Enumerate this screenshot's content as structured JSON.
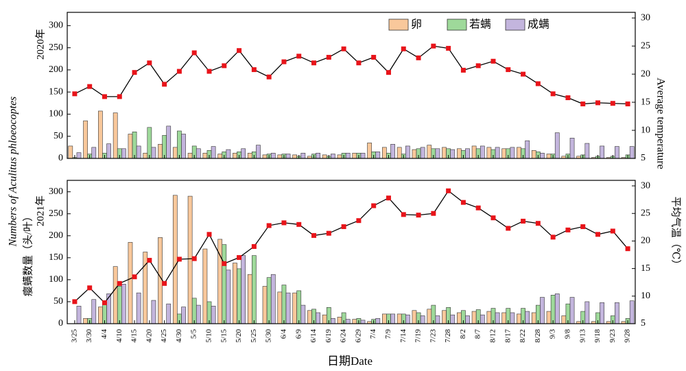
{
  "ylabel": "Numbers of Aculitus phloeocoptes",
  "ylabel_zh": "瘿螨数量（头/叶）",
  "y2label": "Average temperature",
  "y2label_zh": "平均气温（℃）",
  "xlabel": "日期Date",
  "chart_data": [
    {
      "type": "bar",
      "panel_label": "2020年",
      "ylim": [
        0,
        330
      ],
      "yticks": [
        0,
        50,
        100,
        150,
        200,
        250,
        300
      ],
      "y2lim": [
        5,
        31
      ],
      "y2ticks": [
        5,
        10,
        15,
        20,
        25,
        30
      ],
      "series": [
        {
          "name": "卵",
          "color": "#f9c89b",
          "values": [
            28,
            85,
            107,
            103,
            55,
            12,
            32,
            25,
            12,
            12,
            10,
            12,
            12,
            8,
            8,
            8,
            5,
            8,
            8,
            12,
            35,
            25,
            25,
            20,
            30,
            25,
            22,
            28,
            25,
            22,
            25,
            18,
            10,
            5,
            5,
            2,
            2,
            2
          ]
        },
        {
          "name": "若螨",
          "color": "#9ed99a",
          "values": [
            2,
            10,
            12,
            22,
            60,
            70,
            52,
            62,
            28,
            18,
            15,
            15,
            15,
            10,
            10,
            5,
            10,
            5,
            12,
            12,
            15,
            12,
            10,
            22,
            22,
            22,
            18,
            22,
            20,
            22,
            22,
            15,
            10,
            10,
            8,
            5,
            5,
            8
          ]
        },
        {
          "name": "成螨",
          "color": "#c3b5dd",
          "values": [
            13,
            25,
            33,
            22,
            28,
            25,
            73,
            55,
            22,
            27,
            20,
            22,
            30,
            12,
            10,
            12,
            12,
            10,
            12,
            12,
            15,
            32,
            28,
            25,
            22,
            20,
            22,
            28,
            25,
            25,
            40,
            12,
            58,
            46,
            34,
            28,
            27,
            27
          ]
        },
        {
          "type": "line",
          "axis": "y2",
          "color": "#e8141a",
          "values": [
            16.5,
            17.8,
            16,
            16,
            20.3,
            22,
            18.2,
            20.5,
            23.8,
            20.5,
            21.5,
            24.2,
            20.8,
            19.5,
            22.2,
            23.2,
            22,
            23,
            24.5,
            22,
            23,
            20.3,
            24.5,
            22.9,
            25,
            24.6,
            20.7,
            21.5,
            22.3,
            20.8,
            20,
            18.3,
            16.5,
            15.8,
            14.7,
            14.9,
            14.8,
            14.7
          ]
        }
      ]
    },
    {
      "type": "bar",
      "panel_label": "2021年",
      "categories": [
        "3/25",
        "3/30",
        "4/4",
        "4/10",
        "4/15",
        "4/20",
        "4/25",
        "4/30",
        "5/5",
        "5/10",
        "5/15",
        "5/20",
        "5/25",
        "5/30",
        "6/4",
        "6/9",
        "6/14",
        "6/19",
        "6/24",
        "6/29",
        "7/4",
        "7/9",
        "7/14",
        "7/19",
        "7/23",
        "7/28",
        "8/2",
        "8/7",
        "8/12",
        "8/17",
        "8/22",
        "8/28",
        "9/3",
        "9/8",
        "9/13",
        "9/18",
        "9/23",
        "9/28"
      ],
      "ylim": [
        0,
        326
      ],
      "yticks": [
        0,
        50,
        100,
        150,
        200,
        250,
        300
      ],
      "y2lim": [
        5,
        31
      ],
      "y2ticks": [
        5,
        10,
        15,
        20,
        25,
        30
      ],
      "series": [
        {
          "name": "卵",
          "color": "#f9c89b",
          "values": [
            0,
            12,
            38,
            130,
            185,
            163,
            196,
            292,
            290,
            170,
            192,
            138,
            112,
            85,
            72,
            70,
            30,
            20,
            15,
            10,
            5,
            22,
            22,
            30,
            33,
            30,
            25,
            28,
            28,
            25,
            22,
            25,
            28,
            18,
            5,
            5,
            5,
            5
          ]
        },
        {
          "name": "若螨",
          "color": "#9ed99a",
          "values": [
            0,
            12,
            50,
            85,
            0,
            0,
            0,
            22,
            58,
            50,
            180,
            125,
            155,
            105,
            88,
            75,
            33,
            37,
            25,
            12,
            10,
            22,
            22,
            25,
            42,
            37,
            30,
            32,
            35,
            35,
            35,
            42,
            65,
            45,
            28,
            25,
            18,
            12
          ]
        },
        {
          "name": "成螨",
          "color": "#c3b5dd",
          "values": [
            40,
            55,
            68,
            90,
            70,
            53,
            45,
            38,
            42,
            40,
            122,
            155,
            0,
            112,
            70,
            42,
            25,
            12,
            10,
            8,
            12,
            22,
            20,
            18,
            18,
            20,
            18,
            20,
            25,
            25,
            28,
            60,
            68,
            60,
            50,
            48,
            48,
            52
          ]
        },
        {
          "type": "line",
          "axis": "y2",
          "color": "#e8141a",
          "values": [
            9,
            11.5,
            8.8,
            12.3,
            13.5,
            16.5,
            12.3,
            16.7,
            16.8,
            21.2,
            15.9,
            17,
            19,
            22.8,
            23.3,
            23,
            21,
            21.4,
            22.6,
            23.7,
            26.4,
            27.8,
            24.8,
            24.7,
            25,
            29.1,
            27,
            26,
            24.2,
            22.3,
            23.6,
            23.2,
            20.7,
            22,
            22.6,
            21.2,
            21.8,
            18.6
          ]
        }
      ]
    }
  ]
}
